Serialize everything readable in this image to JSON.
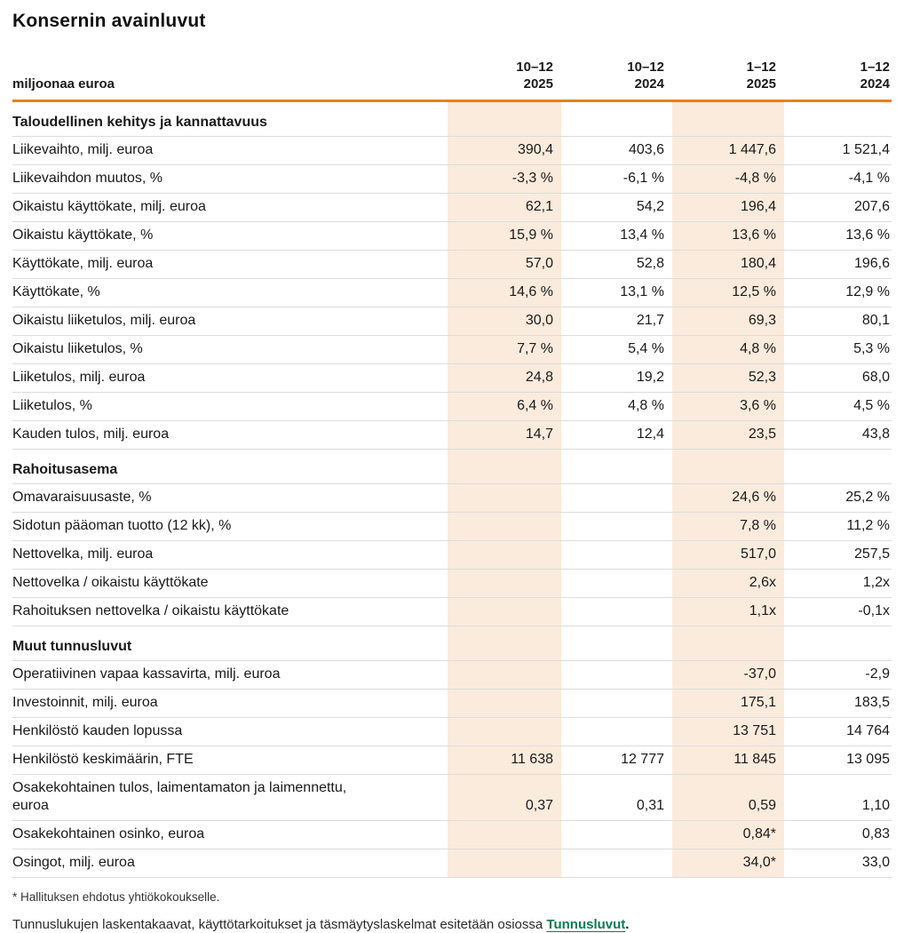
{
  "page_title": "Konsernin avainluvut",
  "colors": {
    "accent_orange": "#E8830D",
    "highlight_band": "#FAEBDC",
    "row_divider": "#DCDCDC",
    "link_green": "#077C52",
    "text": "#1A1A1A"
  },
  "table": {
    "unit_label": "miljoonaa euroa",
    "column_headers": [
      "10–12\n2025",
      "10–12\n2024",
      "1–12\n2025",
      "1–12\n2024"
    ],
    "highlighted_columns": [
      0,
      2
    ],
    "rows": [
      {
        "type": "section",
        "label": "Taloudellinen kehitys ja kannattavuus",
        "values": [
          "",
          "",
          "",
          ""
        ]
      },
      {
        "type": "data",
        "label": "Liikevaihto, milj. euroa",
        "values": [
          "390,4",
          "403,6",
          "1 447,6",
          "1 521,4"
        ]
      },
      {
        "type": "data",
        "label": "Liikevaihdon muutos, %",
        "values": [
          "-3,3 %",
          "-6,1 %",
          "-4,8 %",
          "-4,1 %"
        ]
      },
      {
        "type": "data",
        "label": "Oikaistu käyttökate, milj. euroa",
        "values": [
          "62,1",
          "54,2",
          "196,4",
          "207,6"
        ]
      },
      {
        "type": "data",
        "label": "Oikaistu käyttökate, %",
        "values": [
          "15,9 %",
          "13,4 %",
          "13,6 %",
          "13,6 %"
        ]
      },
      {
        "type": "data",
        "label": "Käyttökate, milj. euroa",
        "values": [
          "57,0",
          "52,8",
          "180,4",
          "196,6"
        ]
      },
      {
        "type": "data",
        "label": "Käyttökate, %",
        "values": [
          "14,6 %",
          "13,1 %",
          "12,5 %",
          "12,9 %"
        ]
      },
      {
        "type": "data",
        "label": "Oikaistu liiketulos, milj. euroa",
        "values": [
          "30,0",
          "21,7",
          "69,3",
          "80,1"
        ]
      },
      {
        "type": "data",
        "label": "Oikaistu liiketulos, %",
        "values": [
          "7,7 %",
          "5,4 %",
          "4,8 %",
          "5,3 %"
        ]
      },
      {
        "type": "data",
        "label": "Liiketulos, milj. euroa",
        "values": [
          "24,8",
          "19,2",
          "52,3",
          "68,0"
        ]
      },
      {
        "type": "data",
        "label": "Liiketulos, %",
        "values": [
          "6,4 %",
          "4,8 %",
          "3,6 %",
          "4,5 %"
        ]
      },
      {
        "type": "data",
        "label": "Kauden tulos, milj. euroa",
        "values": [
          "14,7",
          "12,4",
          "23,5",
          "43,8"
        ]
      },
      {
        "type": "section",
        "label": "Rahoitusasema",
        "values": [
          "",
          "",
          "",
          ""
        ]
      },
      {
        "type": "data",
        "label": "Omavaraisuusaste, %",
        "values": [
          "",
          "",
          "24,6 %",
          "25,2 %"
        ]
      },
      {
        "type": "data",
        "label": "Sidotun pääoman tuotto (12 kk), %",
        "values": [
          "",
          "",
          "7,8 %",
          "11,2 %"
        ]
      },
      {
        "type": "data",
        "label": "Nettovelka, milj. euroa",
        "values": [
          "",
          "",
          "517,0",
          "257,5"
        ]
      },
      {
        "type": "data",
        "label": "Nettovelka / oikaistu käyttökate",
        "values": [
          "",
          "",
          "2,6x",
          "1,2x"
        ]
      },
      {
        "type": "data",
        "label": "Rahoituksen nettovelka / oikaistu käyttökate",
        "values": [
          "",
          "",
          "1,1x",
          "-0,1x"
        ]
      },
      {
        "type": "section",
        "label": "Muut tunnusluvut",
        "values": [
          "",
          "",
          "",
          ""
        ]
      },
      {
        "type": "data",
        "label": "Operatiivinen vapaa kassavirta, milj. euroa",
        "values": [
          "",
          "",
          "-37,0",
          "-2,9"
        ]
      },
      {
        "type": "data",
        "label": "Investoinnit, milj. euroa",
        "values": [
          "",
          "",
          "175,1",
          "183,5"
        ]
      },
      {
        "type": "data",
        "label": "Henkilöstö kauden lopussa",
        "values": [
          "",
          "",
          "13 751",
          "14 764"
        ]
      },
      {
        "type": "data",
        "label": "Henkilöstö keskimäärin, FTE",
        "values": [
          "11 638",
          "12 777",
          "11 845",
          "13 095"
        ]
      },
      {
        "type": "data",
        "label": "Osakekohtainen tulos, laimentamaton ja laimennettu,\neuroa",
        "values": [
          "0,37",
          "0,31",
          "0,59",
          "1,10"
        ]
      },
      {
        "type": "data",
        "label": "Osakekohtainen osinko, euroa",
        "values": [
          "",
          "",
          "0,84*",
          "0,83"
        ]
      },
      {
        "type": "data",
        "label": "Osingot, milj. euroa",
        "values": [
          "",
          "",
          "34,0*",
          "33,0"
        ]
      }
    ]
  },
  "footnotes": {
    "asterisk_note": "* Hallituksen ehdotus yhtiökokoukselle.",
    "link_note_prefix": "Tunnuslukujen laskentakaavat, käyttötarkoitukset ja täsmäytyslaskelmat esitetään osiossa ",
    "link_text": "Tunnusluvut",
    "link_note_suffix": "."
  }
}
